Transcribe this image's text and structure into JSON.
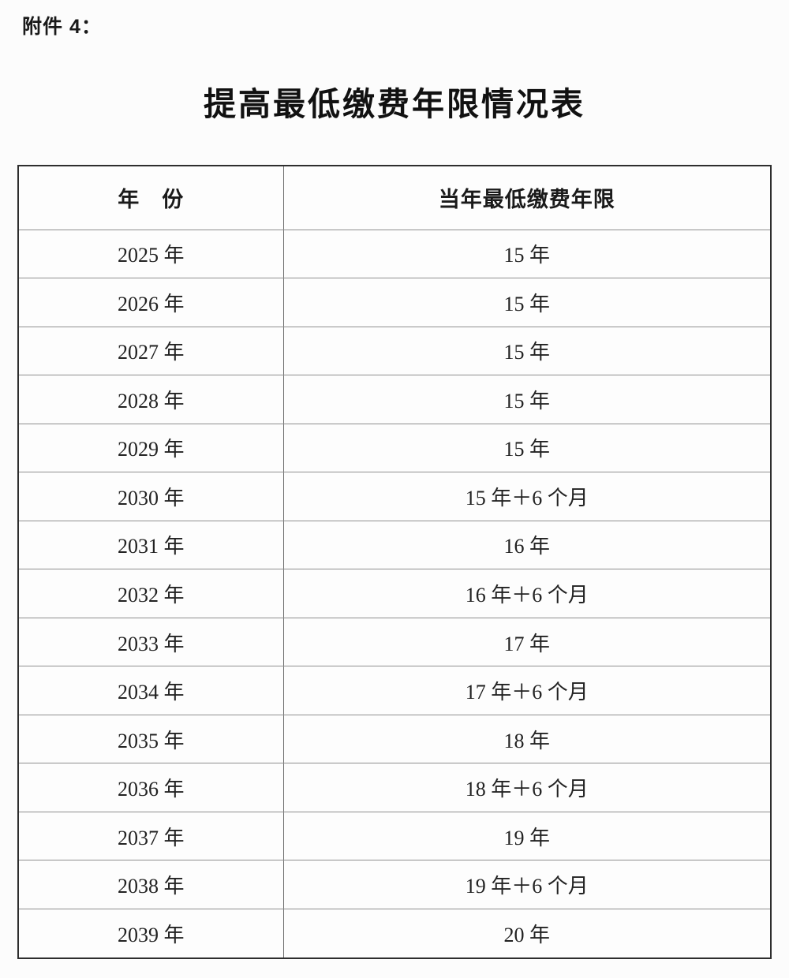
{
  "page": {
    "attachment_label": "附件 4：",
    "title": "提高最低缴费年限情况表"
  },
  "table": {
    "headers": {
      "year": "年　份",
      "min_years": "当年最低缴费年限"
    },
    "rows": [
      {
        "year": "2025 年",
        "min_years": "15 年"
      },
      {
        "year": "2026 年",
        "min_years": "15 年"
      },
      {
        "year": "2027 年",
        "min_years": "15 年"
      },
      {
        "year": "2028 年",
        "min_years": "15 年"
      },
      {
        "year": "2029 年",
        "min_years": "15 年"
      },
      {
        "year": "2030 年",
        "min_years": "15 年＋6 个月"
      },
      {
        "year": "2031 年",
        "min_years": "16 年"
      },
      {
        "year": "2032 年",
        "min_years": "16 年＋6 个月"
      },
      {
        "year": "2033 年",
        "min_years": "17 年"
      },
      {
        "year": "2034 年",
        "min_years": "17 年＋6 个月"
      },
      {
        "year": "2035 年",
        "min_years": "18 年"
      },
      {
        "year": "2036 年",
        "min_years": "18 年＋6 个月"
      },
      {
        "year": "2037 年",
        "min_years": "19 年"
      },
      {
        "year": "2038 年",
        "min_years": "19 年＋6 个月"
      },
      {
        "year": "2039 年",
        "min_years": "20 年"
      }
    ]
  }
}
